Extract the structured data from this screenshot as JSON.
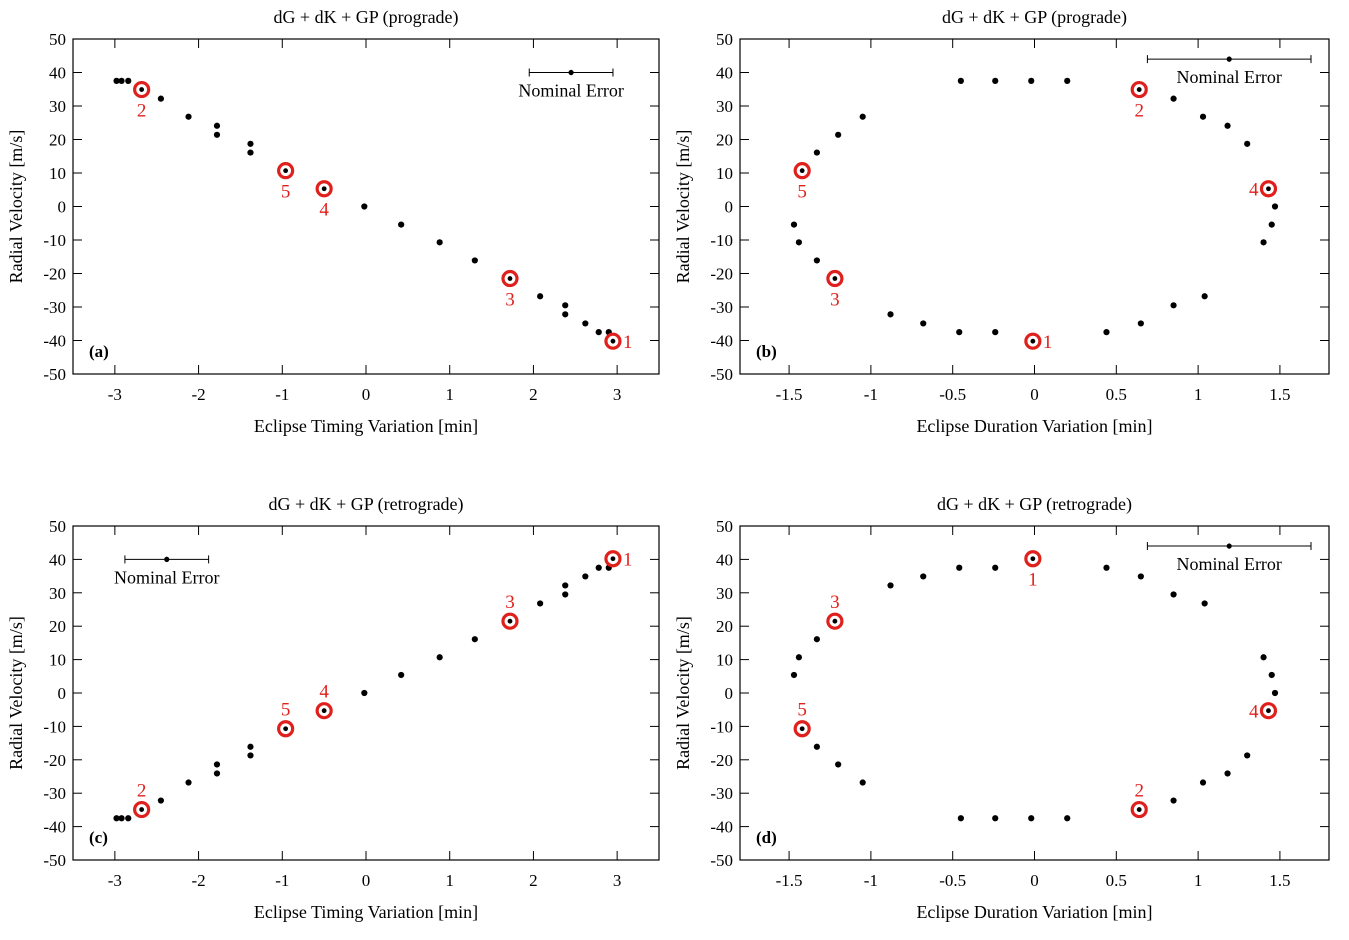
{
  "colors": {
    "data_point": "#000000",
    "highlight": "#e0201c",
    "axis": "#000000",
    "background": "#ffffff"
  },
  "icons": {
    "data_marker": "filled-dot",
    "highlight_marker": "bullseye-ring"
  },
  "chart_data": [
    {
      "type": "scatter",
      "panel_label": "(a)",
      "title": "dG + dK + GP (prograde)",
      "xlabel": "Eclipse Timing Variation [min]",
      "ylabel": "Radial Velocity [m/s]",
      "xlim": [
        -3.5,
        3.5
      ],
      "ylim": [
        -50,
        50
      ],
      "xticks": [
        -3,
        -2,
        -1,
        0,
        1,
        2,
        3
      ],
      "xtick_labels": [
        "-3",
        "-2",
        "-1",
        "0",
        "1",
        "2",
        "3"
      ],
      "yticks": [
        -50,
        -40,
        -30,
        -20,
        -10,
        0,
        10,
        20,
        30,
        40,
        50
      ],
      "ytick_labels": [
        "-50",
        "-40",
        "-30",
        "-20",
        "-10",
        "0",
        "10",
        "20",
        "30",
        "40",
        "50"
      ],
      "grid": false,
      "nominal_error": {
        "label": "Nominal Error",
        "x": 2.45,
        "y": 40,
        "xerr": 0.5,
        "yerr": 0.8,
        "label_placement": "below"
      },
      "points": [
        [
          -2.98,
          37.5
        ],
        [
          -2.92,
          37.5
        ],
        [
          -2.84,
          37.5
        ],
        [
          -2.45,
          32.2
        ],
        [
          -2.12,
          26.8
        ],
        [
          -1.78,
          24.1
        ],
        [
          -1.78,
          21.4
        ],
        [
          -1.38,
          18.7
        ],
        [
          -1.38,
          16.1
        ],
        [
          -0.02,
          0
        ],
        [
          0.42,
          -5.4
        ],
        [
          0.88,
          -10.7
        ],
        [
          1.3,
          -16.1
        ],
        [
          2.08,
          -26.8
        ],
        [
          2.38,
          -29.5
        ],
        [
          2.38,
          -32.2
        ],
        [
          2.62,
          -34.9
        ],
        [
          2.78,
          -37.5
        ],
        [
          2.9,
          -37.5
        ]
      ],
      "highlights": [
        {
          "label": "1",
          "x": 2.95,
          "y": -40.2,
          "label_pos": "right"
        },
        {
          "label": "2",
          "x": -2.68,
          "y": 34.9,
          "label_pos": "below"
        },
        {
          "label": "3",
          "x": 1.72,
          "y": -21.5,
          "label_pos": "below"
        },
        {
          "label": "4",
          "x": -0.5,
          "y": 5.3,
          "label_pos": "below"
        },
        {
          "label": "5",
          "x": -0.96,
          "y": 10.7,
          "label_pos": "below"
        }
      ]
    },
    {
      "type": "scatter",
      "panel_label": "(b)",
      "title": "dG + dK + GP (prograde)",
      "xlabel": "Eclipse Duration Variation [min]",
      "ylabel": "Radial Velocity [m/s]",
      "xlim": [
        -1.8,
        1.8
      ],
      "ylim": [
        -50,
        50
      ],
      "xticks": [
        -1.5,
        -1,
        -0.5,
        0,
        0.5,
        1,
        1.5
      ],
      "xtick_labels": [
        "-1.5",
        "-1",
        "-0.5",
        "0",
        "0.5",
        "1",
        "1.5"
      ],
      "yticks": [
        -50,
        -40,
        -30,
        -20,
        -10,
        0,
        10,
        20,
        30,
        40,
        50
      ],
      "ytick_labels": [
        "-50",
        "-40",
        "-30",
        "-20",
        "-10",
        "0",
        "10",
        "20",
        "30",
        "40",
        "50"
      ],
      "grid": false,
      "nominal_error": {
        "label": "Nominal Error",
        "x": 1.19,
        "y": 44,
        "xerr": 0.5,
        "yerr": 0.8,
        "label_placement": "below"
      },
      "points": [
        [
          -0.45,
          37.5
        ],
        [
          -0.24,
          37.5
        ],
        [
          -0.02,
          37.5
        ],
        [
          0.2,
          37.5
        ],
        [
          0.85,
          32.2
        ],
        [
          1.03,
          26.8
        ],
        [
          1.18,
          24.1
        ],
        [
          1.3,
          18.7
        ],
        [
          1.47,
          0
        ],
        [
          1.45,
          -5.4
        ],
        [
          1.4,
          -10.7
        ],
        [
          1.04,
          -26.8
        ],
        [
          0.85,
          -29.5
        ],
        [
          0.65,
          -34.9
        ],
        [
          0.44,
          -37.5
        ],
        [
          -0.24,
          -37.5
        ],
        [
          -0.46,
          -37.5
        ],
        [
          -0.68,
          -34.9
        ],
        [
          -0.88,
          -32.2
        ],
        [
          -1.33,
          -16.1
        ],
        [
          -1.44,
          -10.7
        ],
        [
          -1.47,
          -5.4
        ],
        [
          -1.33,
          16.1
        ],
        [
          -1.2,
          21.4
        ],
        [
          -1.05,
          26.8
        ]
      ],
      "highlights": [
        {
          "label": "1",
          "x": -0.01,
          "y": -40.2,
          "label_pos": "right"
        },
        {
          "label": "2",
          "x": 0.64,
          "y": 34.9,
          "label_pos": "below"
        },
        {
          "label": "3",
          "x": -1.22,
          "y": -21.5,
          "label_pos": "below"
        },
        {
          "label": "4",
          "x": 1.43,
          "y": 5.3,
          "label_pos": "left"
        },
        {
          "label": "5",
          "x": -1.42,
          "y": 10.7,
          "label_pos": "below"
        }
      ]
    },
    {
      "type": "scatter",
      "panel_label": "(c)",
      "title": "dG + dK + GP (retrograde)",
      "xlabel": "Eclipse Timing Variation [min]",
      "ylabel": "Radial Velocity [m/s]",
      "xlim": [
        -3.5,
        3.5
      ],
      "ylim": [
        -50,
        50
      ],
      "xticks": [
        -3,
        -2,
        -1,
        0,
        1,
        2,
        3
      ],
      "xtick_labels": [
        "-3",
        "-2",
        "-1",
        "0",
        "1",
        "2",
        "3"
      ],
      "yticks": [
        -50,
        -40,
        -30,
        -20,
        -10,
        0,
        10,
        20,
        30,
        40,
        50
      ],
      "ytick_labels": [
        "-50",
        "-40",
        "-30",
        "-20",
        "-10",
        "0",
        "10",
        "20",
        "30",
        "40",
        "50"
      ],
      "grid": false,
      "nominal_error": {
        "label": "Nominal Error",
        "x": -2.38,
        "y": 40,
        "xerr": 0.5,
        "yerr": 0.8,
        "label_placement": "below"
      },
      "points": [
        [
          -2.98,
          -37.5
        ],
        [
          -2.92,
          -37.5
        ],
        [
          -2.84,
          -37.5
        ],
        [
          -2.45,
          -32.2
        ],
        [
          -2.12,
          -26.8
        ],
        [
          -1.78,
          -24.1
        ],
        [
          -1.78,
          -21.4
        ],
        [
          -1.38,
          -18.7
        ],
        [
          -1.38,
          -16.1
        ],
        [
          -0.02,
          0
        ],
        [
          0.42,
          5.4
        ],
        [
          0.88,
          10.7
        ],
        [
          1.3,
          16.1
        ],
        [
          2.08,
          26.8
        ],
        [
          2.38,
          29.5
        ],
        [
          2.38,
          32.2
        ],
        [
          2.62,
          34.9
        ],
        [
          2.78,
          37.5
        ],
        [
          2.9,
          37.5
        ]
      ],
      "highlights": [
        {
          "label": "1",
          "x": 2.95,
          "y": 40.2,
          "label_pos": "right"
        },
        {
          "label": "2",
          "x": -2.68,
          "y": -34.9,
          "label_pos": "above"
        },
        {
          "label": "3",
          "x": 1.72,
          "y": 21.5,
          "label_pos": "above"
        },
        {
          "label": "4",
          "x": -0.5,
          "y": -5.3,
          "label_pos": "above"
        },
        {
          "label": "5",
          "x": -0.96,
          "y": -10.7,
          "label_pos": "above"
        }
      ]
    },
    {
      "type": "scatter",
      "panel_label": "(d)",
      "title": "dG + dK + GP (retrograde)",
      "xlabel": "Eclipse Duration Variation [min]",
      "ylabel": "Radial Velocity [m/s]",
      "xlim": [
        -1.8,
        1.8
      ],
      "ylim": [
        -50,
        50
      ],
      "xticks": [
        -1.5,
        -1,
        -0.5,
        0,
        0.5,
        1,
        1.5
      ],
      "xtick_labels": [
        "-1.5",
        "-1",
        "-0.5",
        "0",
        "0.5",
        "1",
        "1.5"
      ],
      "yticks": [
        -50,
        -40,
        -30,
        -20,
        -10,
        0,
        10,
        20,
        30,
        40,
        50
      ],
      "ytick_labels": [
        "-50",
        "-40",
        "-30",
        "-20",
        "-10",
        "0",
        "10",
        "20",
        "30",
        "40",
        "50"
      ],
      "grid": false,
      "nominal_error": {
        "label": "Nominal Error",
        "x": 1.19,
        "y": 44,
        "xerr": 0.5,
        "yerr": 0.8,
        "label_placement": "below"
      },
      "points": [
        [
          -0.45,
          -37.5
        ],
        [
          -0.24,
          -37.5
        ],
        [
          -0.02,
          -37.5
        ],
        [
          0.2,
          -37.5
        ],
        [
          0.85,
          -32.2
        ],
        [
          1.03,
          -26.8
        ],
        [
          1.18,
          -24.1
        ],
        [
          1.3,
          -18.7
        ],
        [
          1.47,
          0
        ],
        [
          1.45,
          5.4
        ],
        [
          1.4,
          10.7
        ],
        [
          1.04,
          26.8
        ],
        [
          0.85,
          29.5
        ],
        [
          0.65,
          34.9
        ],
        [
          0.44,
          37.5
        ],
        [
          -0.24,
          37.5
        ],
        [
          -0.46,
          37.5
        ],
        [
          -0.68,
          34.9
        ],
        [
          -0.88,
          32.2
        ],
        [
          -1.33,
          16.1
        ],
        [
          -1.44,
          10.7
        ],
        [
          -1.47,
          5.4
        ],
        [
          -1.33,
          -16.1
        ],
        [
          -1.2,
          -21.4
        ],
        [
          -1.05,
          -26.8
        ]
      ],
      "highlights": [
        {
          "label": "1",
          "x": -0.01,
          "y": 40.2,
          "label_pos": "below"
        },
        {
          "label": "2",
          "x": 0.64,
          "y": -34.9,
          "label_pos": "above"
        },
        {
          "label": "3",
          "x": -1.22,
          "y": 21.5,
          "label_pos": "above"
        },
        {
          "label": "4",
          "x": 1.43,
          "y": -5.3,
          "label_pos": "left"
        },
        {
          "label": "5",
          "x": -1.42,
          "y": -10.7,
          "label_pos": "above"
        }
      ]
    }
  ]
}
